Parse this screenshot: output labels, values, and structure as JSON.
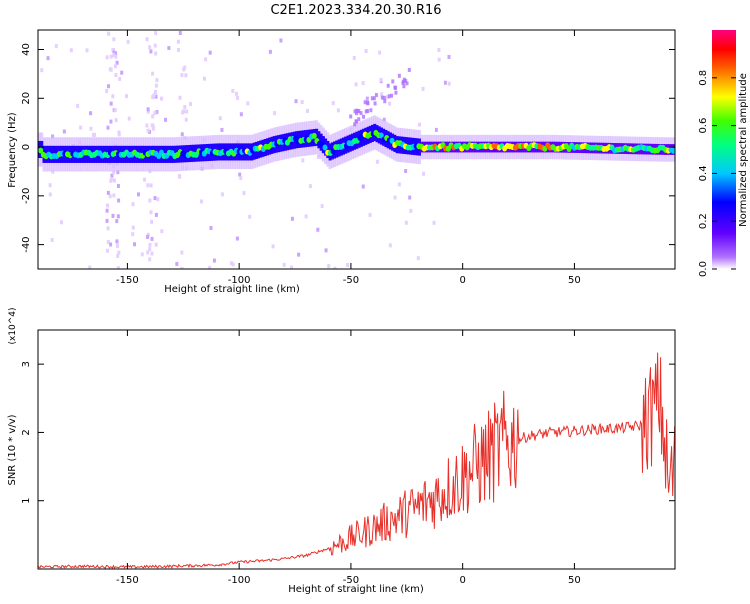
{
  "page_title": "C2E1.2023.334.20.30.R16",
  "chart_data": [
    {
      "type": "heatmap",
      "title": "C2E1.2023.334.20.30.R16",
      "xlabel": "Height of straight line (km)",
      "ylabel": "Frequency (Hz)",
      "xlim": [
        -190,
        95
      ],
      "ylim": [
        -50,
        48
      ],
      "x_ticks": [
        -150,
        -100,
        -50,
        0,
        50
      ],
      "y_ticks": [
        40,
        20,
        0,
        -20,
        -40
      ],
      "grid": false,
      "colorbar": {
        "label": "Normalized spectral amplitude",
        "range": [
          0,
          1
        ],
        "ticks": [
          "0.0",
          "0.2",
          "0.4",
          "0.6",
          "0.8"
        ],
        "colormap": [
          "#ffffff",
          "#7f00ff",
          "#0000ff",
          "#00ffff",
          "#00ff00",
          "#ffff00",
          "#ff0000",
          "#ff0080"
        ]
      },
      "ridge_points": [
        {
          "x": -188,
          "y": -3
        },
        {
          "x": -160,
          "y": -3
        },
        {
          "x": -130,
          "y": -3
        },
        {
          "x": -110,
          "y": -2
        },
        {
          "x": -95,
          "y": -2
        },
        {
          "x": -85,
          "y": 1
        },
        {
          "x": -75,
          "y": 3
        },
        {
          "x": -66,
          "y": 4
        },
        {
          "x": -60,
          "y": -2
        },
        {
          "x": -50,
          "y": 2
        },
        {
          "x": -40,
          "y": 6
        },
        {
          "x": -30,
          "y": 1
        },
        {
          "x": -20,
          "y": 0
        },
        {
          "x": 0,
          "y": 0
        },
        {
          "x": 40,
          "y": 0
        },
        {
          "x": 90,
          "y": -1
        }
      ]
    },
    {
      "type": "line",
      "title": "",
      "xlabel": "Height of straight line (km)",
      "ylabel": "SNR (10 * v/v)",
      "y_multiplier": "(x10^4)",
      "xlim": [
        -190,
        95
      ],
      "ylim": [
        0,
        3.5
      ],
      "x_ticks": [
        -150,
        -100,
        -50,
        0,
        50
      ],
      "y_ticks": [
        1,
        2,
        3
      ],
      "grid": false,
      "color": "#e8302a",
      "series": [
        {
          "x": [
            -190,
            -170,
            -150,
            -130,
            -110,
            -100,
            -90,
            -80,
            -70,
            -60,
            -50,
            -40,
            -30,
            -20,
            -10,
            0,
            10,
            20,
            30,
            40,
            50,
            60,
            70,
            80,
            85,
            88,
            90,
            92,
            95
          ],
          "values": [
            0.03,
            0.04,
            0.03,
            0.04,
            0.06,
            0.1,
            0.12,
            0.15,
            0.2,
            0.3,
            0.45,
            0.6,
            0.75,
            0.9,
            1.1,
            1.35,
            1.6,
            1.85,
            1.95,
            2.0,
            2.02,
            2.05,
            2.06,
            2.1,
            2.3,
            2.5,
            2.0,
            1.2,
            1.5
          ]
        }
      ]
    }
  ]
}
